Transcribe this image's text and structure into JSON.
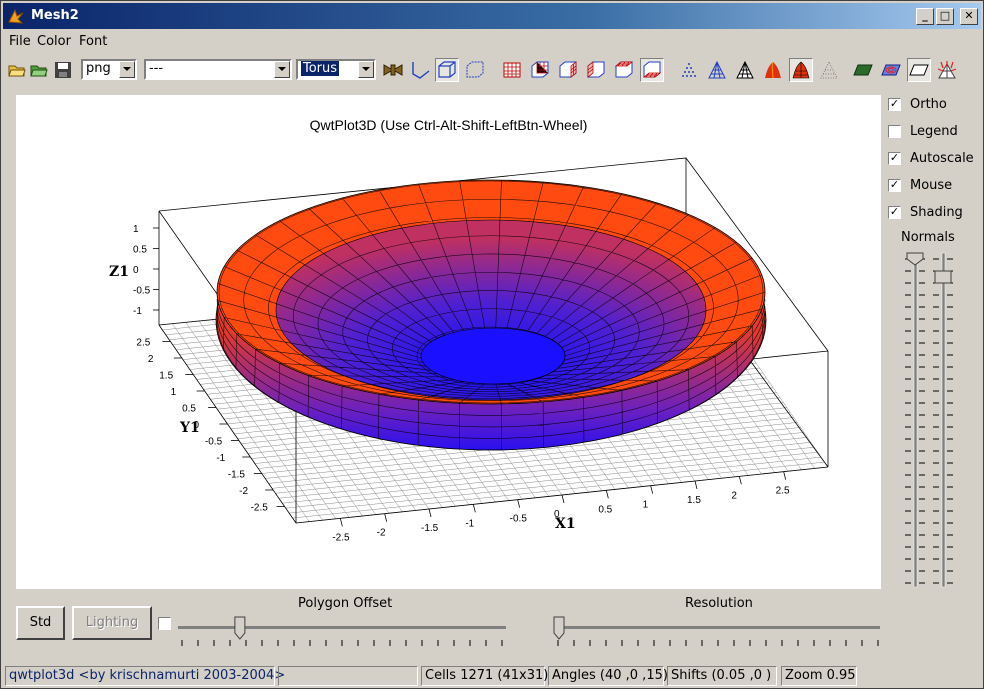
{
  "window": {
    "title": "Mesh2"
  },
  "window_buttons": {
    "minimize": "_",
    "maximize": "□",
    "close": "✕"
  },
  "menu": [
    {
      "label": "File"
    },
    {
      "label": "Color"
    },
    {
      "label": "Font"
    }
  ],
  "toolbar": {
    "format_combo": "png",
    "function_combo": "---",
    "shape_combo": "Torus",
    "icons": [
      "open-file-icon",
      "open-mesh-icon",
      "save-icon",
      "movie-icon",
      "axes-frame-icon",
      "box-frame-icon",
      "no-frame-icon",
      "grid-front-icon",
      "grid-back-icon",
      "grid-right-icon",
      "grid-left-icon",
      "grid-ceil-icon",
      "grid-floor-icon",
      "points-icon",
      "wireframe-icon",
      "hidden-line-icon",
      "filled-polygon-icon",
      "filled-mesh-icon",
      "no-data-icon",
      "floor-data-icon",
      "floor-iso-icon",
      "floor-none-icon",
      "normals-icon"
    ],
    "accent": "#0a246a"
  },
  "plot": {
    "title": "QwtPlot3D (Use Ctrl-Alt-Shift-LeftBtn-Wheel)",
    "axis_labels": {
      "x": "X1",
      "y": "Y1",
      "z": "Z1"
    },
    "x_ticks": [
      "-2.5",
      "-2",
      "-1.5",
      "-1",
      "-0.5",
      "0",
      "0.5",
      "1",
      "1.5",
      "2",
      "2.5"
    ],
    "y_ticks": [
      "-2.5",
      "-2",
      "-1.5",
      "-1",
      "-0.5",
      "0",
      "0.5",
      "1",
      "1.5",
      "2",
      "2.5"
    ],
    "z_ticks": [
      "1",
      "0.5",
      "0",
      "-0.5",
      "-1"
    ],
    "colors": {
      "outer": "#ff4a10",
      "inner": "#1a10ff",
      "mid": "#a0206a"
    }
  },
  "options": {
    "ortho": {
      "label": "Ortho",
      "checked": true
    },
    "legend": {
      "label": "Legend",
      "checked": false
    },
    "autoscale": {
      "label": "Autoscale",
      "checked": true
    },
    "mouse": {
      "label": "Mouse",
      "checked": true
    },
    "shading": {
      "label": "Shading",
      "checked": true
    },
    "normals_label": "Normals"
  },
  "controls": {
    "std_button": "Std",
    "lighting_button": "Lighting",
    "polygon_offset_label": "Polygon Offset",
    "resolution_label": "Resolution",
    "polygon_offset_value": 0.18,
    "resolution_value": 0.0
  },
  "status": {
    "credit": "qwtplot3d <by krischnamurti 2003-2004>",
    "cells": "Cells 1271 (41x31)",
    "angles": "Angles (40 ,0 ,15)",
    "shifts": "Shifts (0.05 ,0 )",
    "zoom": "Zoom 0.95"
  }
}
